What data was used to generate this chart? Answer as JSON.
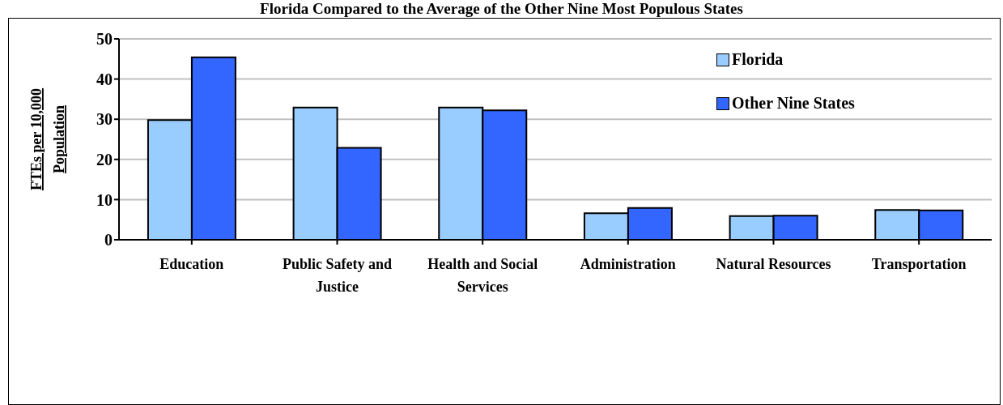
{
  "chart_data": {
    "type": "bar",
    "title": "Florida Compared to the Average of the Other Nine Most Populous States",
    "ylabel": "FTEs per 10,000 Population",
    "categories": [
      "Education",
      "Public Safety and Justice",
      "Health and Social Services",
      "Administration",
      "Natural Resources",
      "Transportation"
    ],
    "series": [
      {
        "name": "Florida",
        "color": "#99ccff",
        "values": [
          29.8,
          32.9,
          32.9,
          6.6,
          5.9,
          7.4
        ]
      },
      {
        "name": "Other Nine States",
        "color": "#3366ff",
        "values": [
          45.4,
          22.9,
          32.2,
          7.9,
          6.0,
          7.3
        ]
      }
    ],
    "ylim": [
      0,
      50
    ],
    "yticks": [
      0,
      10,
      20,
      30,
      40,
      50
    ],
    "grid": "y",
    "legend": "top right"
  }
}
